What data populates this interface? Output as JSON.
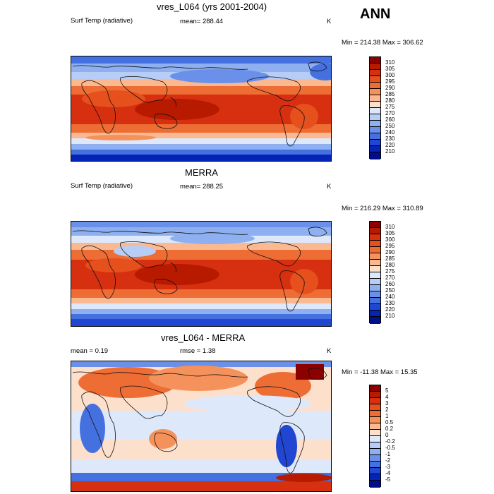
{
  "figure": {
    "season": "ANN"
  },
  "panels": [
    {
      "title": "vres_L064 (yrs 2001-2004)",
      "left_label": "Surf Temp (radiative)",
      "center_label": "mean= 288.44",
      "units": "K",
      "minmax": "Min = 214.38 Max = 306.62",
      "levels": [
        "310",
        "305",
        "300",
        "295",
        "290",
        "285",
        "280",
        "275",
        "270",
        "260",
        "250",
        "240",
        "230",
        "220",
        "210"
      ],
      "colors": [
        "#8c0000",
        "#b81a00",
        "#d73010",
        "#e5501c",
        "#ee6d35",
        "#f5925c",
        "#fbb992",
        "#fde0cc",
        "#dde8fb",
        "#b7cdf6",
        "#8eb0f0",
        "#6a90ea",
        "#4570e0",
        "#2046d2",
        "#0523b5",
        "#000e8c"
      ]
    },
    {
      "title": "MERRA",
      "left_label": "Surf Temp (radiative)",
      "center_label": "mean= 288.25",
      "units": "K",
      "minmax": "Min = 216.29 Max = 310.89",
      "levels": [
        "310",
        "305",
        "300",
        "295",
        "290",
        "285",
        "280",
        "275",
        "270",
        "260",
        "250",
        "240",
        "230",
        "220",
        "210"
      ],
      "colors": [
        "#8c0000",
        "#b81a00",
        "#d73010",
        "#e5501c",
        "#ee6d35",
        "#f5925c",
        "#fbb992",
        "#fde0cc",
        "#dde8fb",
        "#b7cdf6",
        "#8eb0f0",
        "#6a90ea",
        "#4570e0",
        "#2046d2",
        "#0523b5",
        "#000e8c"
      ]
    },
    {
      "title": "vres_L064 - MERRA",
      "left_label": "mean =   0.19",
      "center_label": "rmse =   1.38",
      "units": "K",
      "minmax": "Min = -11.38 Max =  15.35",
      "levels": [
        "5",
        "4",
        "3",
        "2",
        "1",
        "0.5",
        "0.2",
        "0",
        "-0.2",
        "-0.5",
        "-1",
        "-2",
        "-3",
        "-4",
        "-5"
      ],
      "colors": [
        "#8c0000",
        "#b81a00",
        "#d73010",
        "#e5501c",
        "#ee6d35",
        "#f5925c",
        "#fbb992",
        "#fde0cc",
        "#dde8fb",
        "#b7cdf6",
        "#8eb0f0",
        "#6a90ea",
        "#4570e0",
        "#2046d2",
        "#0523b5",
        "#000e8c"
      ]
    }
  ]
}
